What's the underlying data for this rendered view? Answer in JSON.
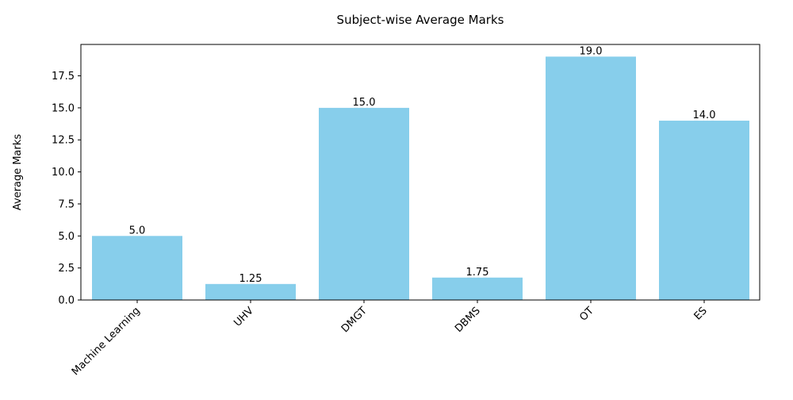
{
  "chart_data": {
    "type": "bar",
    "title": "Subject-wise Average Marks",
    "xlabel": "",
    "ylabel": "Average Marks",
    "categories": [
      "Machine Learning",
      "UHV",
      "DMGT",
      "DBMS",
      "OT",
      "ES"
    ],
    "values": [
      5.0,
      1.25,
      15.0,
      1.75,
      19.0,
      14.0
    ],
    "value_labels": [
      "5.0",
      "1.25",
      "15.0",
      "1.75",
      "19.0",
      "14.0"
    ],
    "ylim": [
      0,
      19.95
    ],
    "yticks": [
      0.0,
      2.5,
      5.0,
      7.5,
      10.0,
      12.5,
      15.0,
      17.5
    ],
    "ytick_labels": [
      "0.0",
      "2.5",
      "5.0",
      "7.5",
      "10.0",
      "12.5",
      "15.0",
      "17.5"
    ],
    "bar_color": "#87ceeb",
    "grid": false,
    "legend": "none"
  }
}
